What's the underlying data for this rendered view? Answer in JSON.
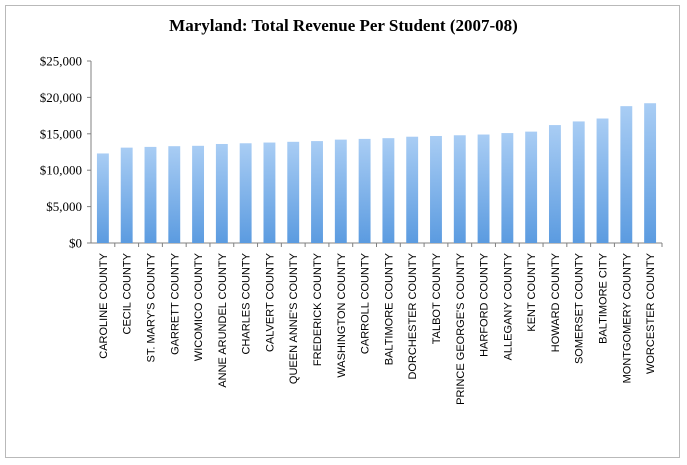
{
  "chart_data": {
    "type": "bar",
    "title": "Maryland: Total Revenue Per Student (2007-08)",
    "xlabel": "",
    "ylabel": "",
    "ylim": [
      0,
      25000
    ],
    "yticks": [
      "$0",
      "$5,000",
      "$10,000",
      "$15,000",
      "$20,000",
      "$25,000"
    ],
    "ytick_values": [
      0,
      5000,
      10000,
      15000,
      20000,
      25000
    ],
    "grid": false,
    "bar_color_top": "#a9cdf4",
    "bar_color_bottom": "#5b9be0",
    "categories": [
      "CAROLINE COUNTY",
      "CECIL COUNTY",
      "ST. MARY'S COUNTY",
      "GARRETT COUNTY",
      "WICOMICO COUNTY",
      "ANNE ARUNDEL COUNTY",
      "CHARLES COUNTY",
      "CALVERT COUNTY",
      "QUEEN ANNE'S COUNTY",
      "FREDERICK COUNTY",
      "WASHINGTON COUNTY",
      "CARROLL COUNTY",
      "BALTIMORE COUNTY",
      "DORCHESTER COUNTY",
      "TALBOT COUNTY",
      "PRINCE GEORGE'S COUNTY",
      "HARFORD COUNTY",
      "ALLEGANY COUNTY",
      "KENT COUNTY",
      "HOWARD COUNTY",
      "SOMERSET COUNTY",
      "BALTIMORE CITY",
      "MONTGOMERY COUNTY",
      "WORCESTER COUNTY"
    ],
    "values": [
      12300,
      13100,
      13200,
      13300,
      13350,
      13600,
      13700,
      13800,
      13900,
      14000,
      14200,
      14300,
      14400,
      14600,
      14700,
      14800,
      14900,
      15100,
      15300,
      16200,
      16700,
      17100,
      18800,
      19200
    ]
  }
}
